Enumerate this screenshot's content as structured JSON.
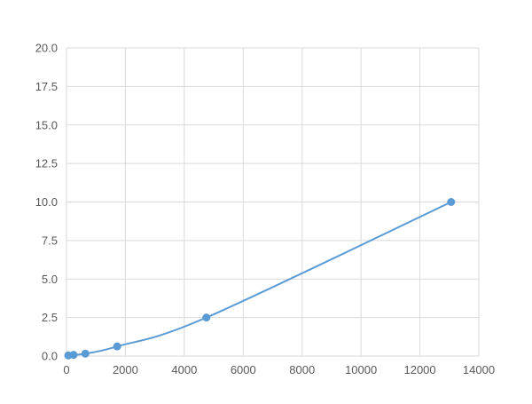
{
  "chart_data": {
    "type": "line",
    "title": "",
    "xlabel": "",
    "ylabel": "",
    "xlim": [
      0,
      14000
    ],
    "ylim": [
      0,
      20
    ],
    "xticks": [
      0,
      2000,
      4000,
      6000,
      8000,
      10000,
      12000,
      14000
    ],
    "yticks": [
      "0.0",
      "2.5",
      "5.0",
      "7.5",
      "10.0",
      "12.5",
      "15.0",
      "17.5",
      "20.0"
    ],
    "grid": true,
    "legend": "none",
    "smooth": true,
    "color": "#5b9bd5",
    "series": [
      {
        "x": [
          60,
          240,
          640,
          1720,
          4750,
          13060
        ],
        "y": [
          0.039,
          0.078,
          0.156,
          0.625,
          2.5,
          10
        ]
      }
    ]
  }
}
